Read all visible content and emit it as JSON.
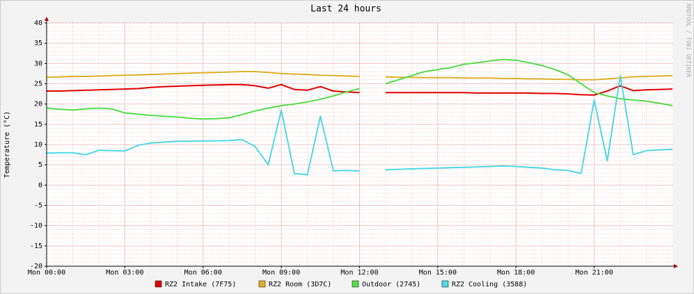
{
  "chart_data": {
    "type": "line",
    "title": "Last 24 hours",
    "y_label": "Temperature (°C)",
    "watermark": "RRDTOOL / TOBI OETIKER",
    "x": [
      0,
      0.5,
      1,
      1.5,
      2,
      2.5,
      3,
      3.5,
      4,
      4.5,
      5,
      5.5,
      6,
      6.5,
      7,
      7.5,
      8,
      8.5,
      9,
      9.5,
      10,
      10.5,
      11,
      11.5,
      12,
      12.5,
      13,
      13.5,
      14,
      14.5,
      15,
      15.5,
      16,
      16.5,
      17,
      17.5,
      18,
      18.5,
      19,
      19.5,
      20,
      20.5,
      21,
      21.5,
      22,
      22.5,
      23,
      23.5,
      24
    ],
    "xlim": [
      0,
      24
    ],
    "xticks": [
      {
        "value": 0,
        "label": "Mon 00:00"
      },
      {
        "value": 3,
        "label": "Mon 03:00"
      },
      {
        "value": 6,
        "label": "Mon 06:00"
      },
      {
        "value": 9,
        "label": "Mon 09:00"
      },
      {
        "value": 12,
        "label": "Mon 12:00"
      },
      {
        "value": 15,
        "label": "Mon 15:00"
      },
      {
        "value": 18,
        "label": "Mon 18:00"
      },
      {
        "value": 21,
        "label": "Mon 21:00"
      }
    ],
    "ylim": [
      -20,
      40
    ],
    "yticks": [
      -20,
      -15,
      -10,
      -5,
      0,
      5,
      10,
      15,
      20,
      25,
      30,
      35,
      40
    ],
    "grid": true,
    "minor_grid": true,
    "legend": "bottom",
    "series": [
      {
        "name": "RZ2 Intake (7F75)",
        "color": "#e00000",
        "values": [
          23.2,
          23.2,
          23.3,
          23.4,
          23.5,
          23.6,
          23.7,
          23.8,
          24.1,
          24.3,
          24.4,
          24.5,
          24.6,
          24.7,
          24.8,
          24.8,
          24.5,
          23.9,
          24.8,
          23.6,
          23.4,
          24.3,
          23.2,
          23.0,
          22.8,
          null,
          22.8,
          22.8,
          22.8,
          22.8,
          22.8,
          22.8,
          22.8,
          22.7,
          22.7,
          22.7,
          22.7,
          22.7,
          22.6,
          22.6,
          22.5,
          22.3,
          22.2,
          23.2,
          24.5,
          23.3,
          23.5,
          23.6,
          23.7
        ]
      },
      {
        "name": "RZ2 Room (3D7C)",
        "color": "#dcb12a",
        "values": [
          26.6,
          26.7,
          26.8,
          26.8,
          26.9,
          27.0,
          27.1,
          27.2,
          27.3,
          27.4,
          27.5,
          27.6,
          27.7,
          27.8,
          27.9,
          28.0,
          28.0,
          27.8,
          27.5,
          27.4,
          27.3,
          27.1,
          27.0,
          26.9,
          26.8,
          null,
          26.7,
          26.6,
          26.6,
          26.5,
          26.5,
          26.5,
          26.4,
          26.4,
          26.4,
          26.3,
          26.3,
          26.2,
          26.2,
          26.1,
          26.1,
          26.0,
          26.0,
          26.2,
          26.4,
          26.7,
          26.8,
          26.9,
          27.0
        ]
      },
      {
        "name": "Outdoor (2745)",
        "color": "#54dc48",
        "values": [
          19.0,
          18.7,
          18.5,
          18.8,
          19.0,
          18.8,
          17.8,
          17.5,
          17.2,
          17.0,
          16.8,
          16.5,
          16.3,
          16.4,
          16.6,
          17.4,
          18.3,
          19.0,
          19.6,
          20.0,
          20.5,
          21.2,
          22.0,
          23.0,
          23.8,
          null,
          25.0,
          26.0,
          27.0,
          28.0,
          28.5,
          29.0,
          29.8,
          30.2,
          30.6,
          31.0,
          30.8,
          30.2,
          29.5,
          28.5,
          27.2,
          25.0,
          22.8,
          22.0,
          21.3,
          21.0,
          20.7,
          20.2,
          19.6
        ]
      },
      {
        "name": "RZ2 Cooling (3588)",
        "color": "#4ed8e4",
        "values": [
          7.9,
          8.0,
          8.0,
          7.5,
          8.6,
          8.5,
          8.4,
          9.8,
          10.4,
          10.6,
          10.8,
          10.8,
          10.9,
          10.9,
          11.0,
          11.2,
          9.5,
          5.0,
          18.5,
          2.8,
          2.6,
          17.0,
          3.5,
          3.6,
          3.5,
          null,
          3.8,
          3.9,
          4.0,
          4.1,
          4.2,
          4.3,
          4.4,
          4.5,
          4.6,
          4.7,
          4.6,
          4.4,
          4.2,
          3.8,
          3.6,
          2.9,
          21.0,
          6.0,
          27.0,
          7.5,
          8.5,
          8.7,
          8.8
        ]
      }
    ]
  }
}
